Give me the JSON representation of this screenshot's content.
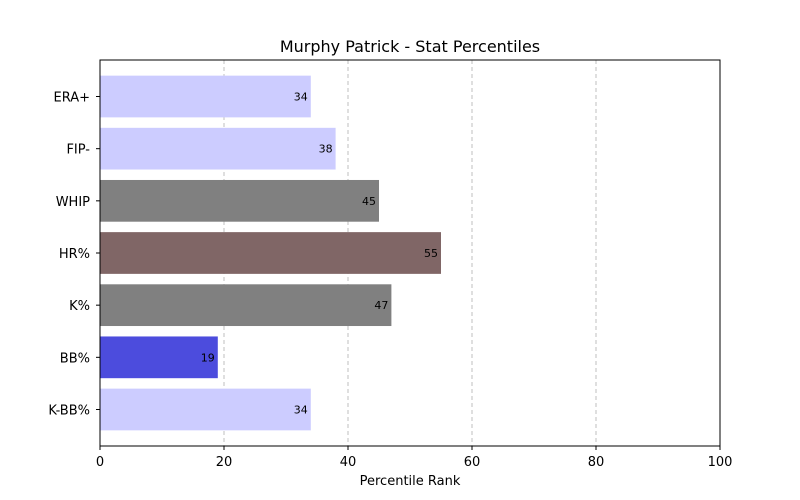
{
  "chart_data": {
    "type": "bar",
    "orientation": "horizontal",
    "title": "Murphy Patrick - Stat Percentiles",
    "xlabel": "Percentile Rank",
    "ylabel": "",
    "xlim": [
      0,
      100
    ],
    "xticks": [
      0,
      20,
      40,
      60,
      80,
      100
    ],
    "grid": "x-dashed",
    "categories": [
      "ERA+",
      "FIP-",
      "WHIP",
      "HR%",
      "K%",
      "BB%",
      "K-BB%"
    ],
    "values": [
      34,
      38,
      45,
      55,
      47,
      19,
      34
    ],
    "colors": [
      "#ccccff",
      "#ccccff",
      "#808080",
      "#806666",
      "#808080",
      "#4c4cdd",
      "#ccccff"
    ]
  }
}
